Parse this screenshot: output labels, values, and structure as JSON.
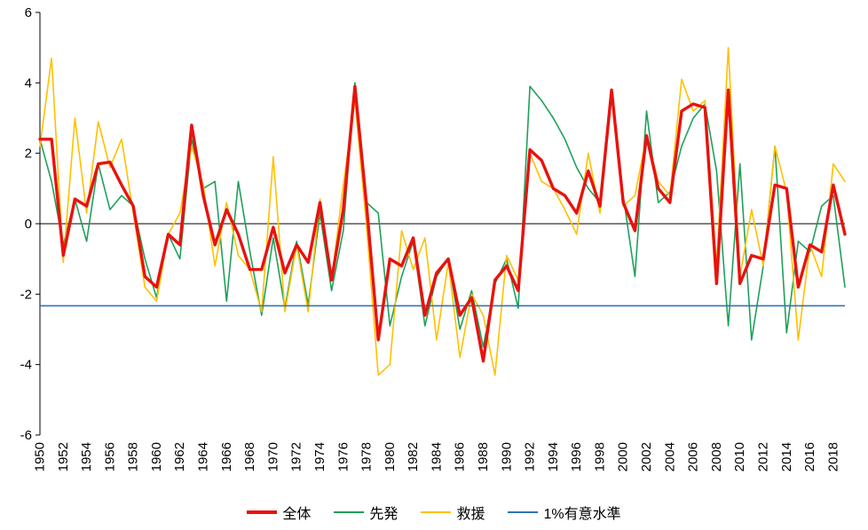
{
  "chart_data": {
    "type": "line",
    "title": "",
    "xlabel": "",
    "ylabel": "",
    "ylim": [
      -6,
      6
    ],
    "y_ticks": [
      6,
      4,
      2,
      0,
      -2,
      -4,
      -6
    ],
    "x_tick_step_years": 2,
    "grid": false,
    "legend_position": "bottom",
    "years": [
      1950,
      1951,
      1952,
      1953,
      1954,
      1955,
      1956,
      1957,
      1958,
      1959,
      1960,
      1961,
      1962,
      1963,
      1964,
      1965,
      1966,
      1967,
      1968,
      1969,
      1970,
      1971,
      1972,
      1973,
      1974,
      1975,
      1976,
      1977,
      1978,
      1979,
      1980,
      1981,
      1982,
      1983,
      1984,
      1985,
      1986,
      1987,
      1988,
      1989,
      1990,
      1991,
      1992,
      1993,
      1994,
      1995,
      1996,
      1997,
      1998,
      1999,
      2000,
      2001,
      2002,
      2003,
      2004,
      2005,
      2006,
      2007,
      2008,
      2009,
      2010,
      2011,
      2012,
      2013,
      2014,
      2015,
      2016,
      2017,
      2018,
      2019
    ],
    "series": [
      {
        "name": "全体",
        "color": "#e8120e",
        "width": 3.4,
        "values": [
          2.4,
          2.4,
          -0.9,
          0.7,
          0.5,
          1.7,
          1.75,
          1.1,
          0.5,
          -1.5,
          -1.8,
          -0.3,
          -0.6,
          2.8,
          0.8,
          -0.6,
          0.4,
          -0.3,
          -1.3,
          -1.3,
          -0.1,
          -1.4,
          -0.6,
          -1.1,
          0.6,
          -1.6,
          0.4,
          3.9,
          0.5,
          -3.3,
          -1.0,
          -1.2,
          -0.4,
          -2.6,
          -1.4,
          -1.0,
          -2.6,
          -2.1,
          -3.9,
          -1.6,
          -1.2,
          -1.9,
          2.1,
          1.8,
          1.0,
          0.8,
          0.3,
          1.5,
          0.5,
          3.8,
          0.6,
          -0.2,
          2.5,
          1.0,
          0.6,
          3.2,
          3.4,
          3.3,
          -1.7,
          3.8,
          -1.7,
          -0.9,
          -1.0,
          1.1,
          1.0,
          -1.8,
          -0.6,
          -0.8,
          1.1,
          -0.3
        ]
      },
      {
        "name": "先発",
        "color": "#1fa05a",
        "width": 1.6,
        "values": [
          2.4,
          1.2,
          -0.6,
          0.7,
          -0.5,
          1.7,
          0.4,
          0.8,
          0.5,
          -1.0,
          -2.1,
          -0.3,
          -1.0,
          2.4,
          1.0,
          1.2,
          -2.2,
          1.2,
          -0.8,
          -2.6,
          -0.4,
          -2.4,
          -0.5,
          -2.3,
          0.3,
          -1.9,
          -0.2,
          4.0,
          0.6,
          0.3,
          -2.9,
          -1.5,
          -0.5,
          -2.9,
          -1.5,
          -1.0,
          -3.0,
          -1.9,
          -3.5,
          -1.7,
          -1.0,
          -2.4,
          3.9,
          3.5,
          3.0,
          2.4,
          1.6,
          1.0,
          0.6,
          3.8,
          0.8,
          -1.5,
          3.2,
          0.6,
          0.9,
          2.2,
          3.0,
          3.4,
          1.5,
          -2.9,
          1.7,
          -3.3,
          -1.2,
          2.2,
          -3.1,
          -0.5,
          -0.8,
          0.5,
          0.8,
          -1.8
        ]
      },
      {
        "name": "救援",
        "color": "#ffc000",
        "width": 1.6,
        "values": [
          2.2,
          4.7,
          -1.1,
          3.0,
          0.3,
          2.9,
          1.6,
          2.4,
          0.3,
          -1.8,
          -2.2,
          -0.3,
          0.3,
          2.2,
          1.1,
          -1.2,
          0.6,
          -0.9,
          -1.3,
          -2.5,
          1.9,
          -2.5,
          -0.6,
          -2.5,
          0.7,
          -1.6,
          1.1,
          3.5,
          -0.1,
          -4.3,
          -4.0,
          -0.2,
          -1.3,
          -0.4,
          -3.3,
          -1.1,
          -3.8,
          -2.0,
          -2.6,
          -4.3,
          -0.9,
          -1.6,
          2.0,
          1.2,
          1.0,
          0.4,
          -0.3,
          2.0,
          0.3,
          3.8,
          0.5,
          0.8,
          2.5,
          1.2,
          0.8,
          4.1,
          3.2,
          3.5,
          -1.2,
          5.0,
          -1.5,
          0.4,
          -1.2,
          2.2,
          0.9,
          -3.3,
          -0.6,
          -1.5,
          1.7,
          1.2
        ]
      }
    ],
    "reference_line": {
      "name": "1%有意水準",
      "color": "#2e75b6",
      "width": 1.6,
      "value": -2.33
    },
    "zero_line_color": "#000000",
    "axis_color": "#000000"
  }
}
